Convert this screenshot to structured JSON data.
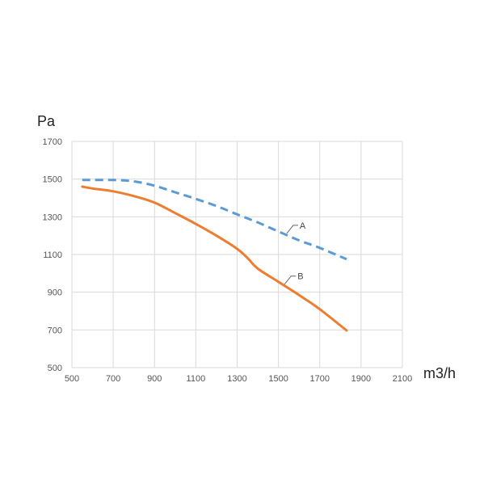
{
  "chart_data": {
    "type": "line",
    "title": "",
    "xlabel": "m3/h",
    "ylabel": "Pa",
    "xlim": [
      500,
      2100
    ],
    "ylim": [
      500,
      1700
    ],
    "x_ticks": [
      500,
      700,
      900,
      1100,
      1300,
      1500,
      1700,
      1900,
      2100
    ],
    "y_ticks": [
      500,
      700,
      900,
      1100,
      1300,
      1500,
      1700
    ],
    "grid": true,
    "legend": "none",
    "series": [
      {
        "name": "A",
        "style": "dashed",
        "color": "#5b9bd5",
        "x": [
          550,
          600,
          700,
          800,
          900,
          1000,
          1100,
          1200,
          1300,
          1400,
          1500,
          1600,
          1700,
          1830
        ],
        "y": [
          1495,
          1495,
          1495,
          1488,
          1465,
          1430,
          1395,
          1357,
          1313,
          1270,
          1222,
          1175,
          1135,
          1075
        ]
      },
      {
        "name": "B",
        "style": "solid",
        "color": "#ed7d31",
        "x": [
          550,
          600,
          700,
          800,
          900,
          1000,
          1100,
          1200,
          1300,
          1350,
          1400,
          1500,
          1600,
          1700,
          1830
        ],
        "y": [
          1460,
          1450,
          1435,
          1410,
          1375,
          1320,
          1262,
          1200,
          1130,
          1082,
          1025,
          955,
          885,
          810,
          697
        ]
      }
    ]
  }
}
